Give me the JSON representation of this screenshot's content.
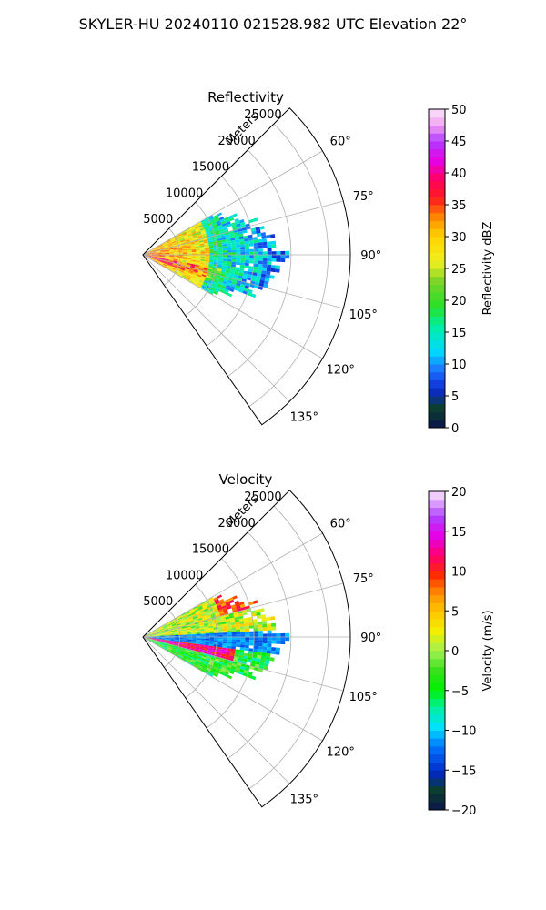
{
  "figure": {
    "suptitle": "SKYLER-HU  20240110  021528.982 UTC Elevation 22°"
  },
  "chart_data": [
    {
      "type": "polar_sector",
      "title": "Reflectivity",
      "range_label": "Meters",
      "radial_ticks": [
        5000,
        10000,
        15000,
        20000,
        25000
      ],
      "radial_tick_labels": [
        "5000",
        "10000",
        "15000",
        "20000",
        "25000"
      ],
      "theta_ticks_deg": [
        60,
        75,
        90,
        105,
        120,
        135
      ],
      "theta_tick_labels": [
        "60°",
        "75°",
        "90°",
        "105°",
        "120°",
        "135°"
      ],
      "theta_range_deg": [
        45,
        145
      ],
      "r_max": 28000,
      "grid": true,
      "colorbar": {
        "label": "Reflectivity dBZ",
        "range": [
          0,
          50
        ],
        "ticks": [
          0,
          5,
          10,
          15,
          20,
          25,
          30,
          35,
          40,
          45,
          50
        ],
        "tick_labels": [
          "0",
          "5",
          "10",
          "15",
          "20",
          "25",
          "30",
          "35",
          "40",
          "45",
          "50"
        ]
      },
      "field_summary": {
        "echo_azimuth_deg": [
          60,
          120
        ],
        "echo_max_range_m": [
          0,
          19000
        ],
        "near_range_dbz": 33,
        "far_range_dbz": 18
      }
    },
    {
      "type": "polar_sector",
      "title": "Velocity",
      "range_label": "Meters",
      "radial_ticks": [
        5000,
        10000,
        15000,
        20000,
        25000
      ],
      "radial_tick_labels": [
        "5000",
        "10000",
        "15000",
        "20000",
        "25000"
      ],
      "theta_ticks_deg": [
        60,
        75,
        90,
        105,
        120,
        135
      ],
      "theta_tick_labels": [
        "60°",
        "75°",
        "90°",
        "105°",
        "120°",
        "135°"
      ],
      "theta_range_deg": [
        45,
        145
      ],
      "r_max": 28000,
      "grid": true,
      "colorbar": {
        "label": "Velocity (m/s)",
        "range": [
          -20,
          20
        ],
        "ticks": [
          -20,
          -15,
          -10,
          -5,
          0,
          5,
          10,
          15,
          20
        ],
        "tick_labels": [
          "−20",
          "−15",
          "−10",
          "−5",
          "0",
          "5",
          "10",
          "15",
          "20"
        ]
      },
      "field_summary": {
        "echo_azimuth_deg": [
          60,
          120
        ],
        "echo_max_range_m": [
          0,
          19000
        ],
        "velocity_band_deg": [
          88,
          97
        ],
        "velocity_band_ms": -12,
        "outbound_max_ms": 12
      }
    }
  ]
}
